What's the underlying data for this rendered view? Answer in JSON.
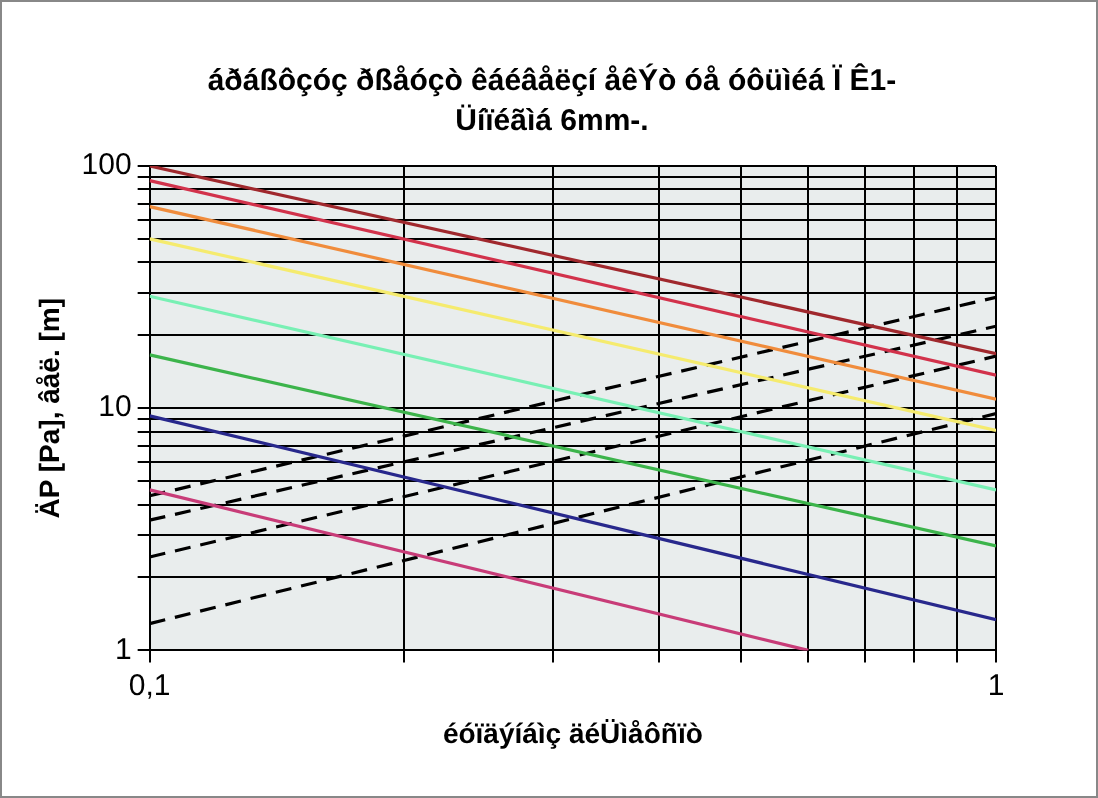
{
  "chart_data": {
    "type": "line",
    "title": "áðáßôçóç ðßåóçò êáéâåëçí åêÝò óå óôüìéá Ï Ê1-Üíïéãìá 6mm-.",
    "xlabel": "éóïäýíáìç äéÜìåôñïò",
    "ylabel": "ÄP [Pa], âåë. [m]",
    "log": "xy",
    "grid": true,
    "legend": false,
    "marker": "none",
    "line_style": "solid",
    "xlim": [
      0.1,
      1
    ],
    "ylim": [
      1,
      100
    ],
    "xticks": [
      {
        "value": 0.1,
        "label": "0,1"
      },
      {
        "value": 0.2,
        "label": null
      },
      {
        "value": 0.3,
        "label": null
      },
      {
        "value": 0.4,
        "label": null
      },
      {
        "value": 0.5,
        "label": null
      },
      {
        "value": 0.6,
        "label": null
      },
      {
        "value": 0.7,
        "label": null
      },
      {
        "value": 0.8,
        "label": null
      },
      {
        "value": 0.9,
        "label": null
      },
      1
    ],
    "yticks": [
      1,
      {
        "value": 2,
        "label": null
      },
      {
        "value": 3,
        "label": null
      },
      {
        "value": 4,
        "label": null
      },
      {
        "value": 5,
        "label": null
      },
      {
        "value": 6,
        "label": null
      },
      {
        "value": 7,
        "label": null
      },
      {
        "value": 8,
        "label": null
      },
      {
        "value": 9,
        "label": null
      },
      10,
      {
        "value": 20,
        "label": null
      },
      {
        "value": 30,
        "label": null
      },
      {
        "value": 40,
        "label": null
      },
      {
        "value": 50,
        "label": null
      },
      {
        "value": 60,
        "label": null
      },
      {
        "value": 70,
        "label": null
      },
      {
        "value": 80,
        "label": null
      },
      {
        "value": 90,
        "label": null
      },
      100
    ],
    "series": [
      {
        "color": "#a0282d",
        "x": [
          0.1,
          1
        ],
        "values": [
          100,
          16.8
        ]
      },
      {
        "color": "#d2324b",
        "x": [
          0.1,
          1
        ],
        "values": [
          87,
          13.7
        ]
      },
      {
        "color": "#f08c3c",
        "x": [
          0.1,
          1
        ],
        "values": [
          68,
          10.9
        ]
      },
      {
        "color": "#f5eb6e",
        "x": [
          0.1,
          1
        ],
        "values": [
          50,
          8.1
        ]
      },
      {
        "color": "#78f0b4",
        "x": [
          0.1,
          1
        ],
        "values": [
          29,
          4.6
        ]
      },
      {
        "color": "#3cb44b",
        "x": [
          0.1,
          1
        ],
        "values": [
          16.6,
          2.7
        ]
      },
      {
        "color": "#28288c",
        "x": [
          0.1,
          1
        ],
        "values": [
          9.3,
          1.34
        ]
      },
      {
        "color": "#c83c78",
        "x": [
          0.1,
          0.6
        ],
        "values": [
          4.6,
          1
        ]
      },
      {
        "color": "#000000",
        "line_style": "dashed",
        "x": [
          0.1,
          1
        ],
        "values": [
          4.35,
          28.7
        ]
      },
      {
        "color": "#000000",
        "line_style": "dashed",
        "x": [
          0.1,
          1
        ],
        "values": [
          3.45,
          21.8
        ]
      },
      {
        "color": "#000000",
        "line_style": "dashed",
        "x": [
          0.1,
          1
        ],
        "values": [
          2.43,
          16.4
        ]
      },
      {
        "color": "#000000",
        "line_style": "dashed",
        "x": [
          0.1,
          1
        ],
        "values": [
          1.29,
          9.5
        ]
      }
    ]
  }
}
